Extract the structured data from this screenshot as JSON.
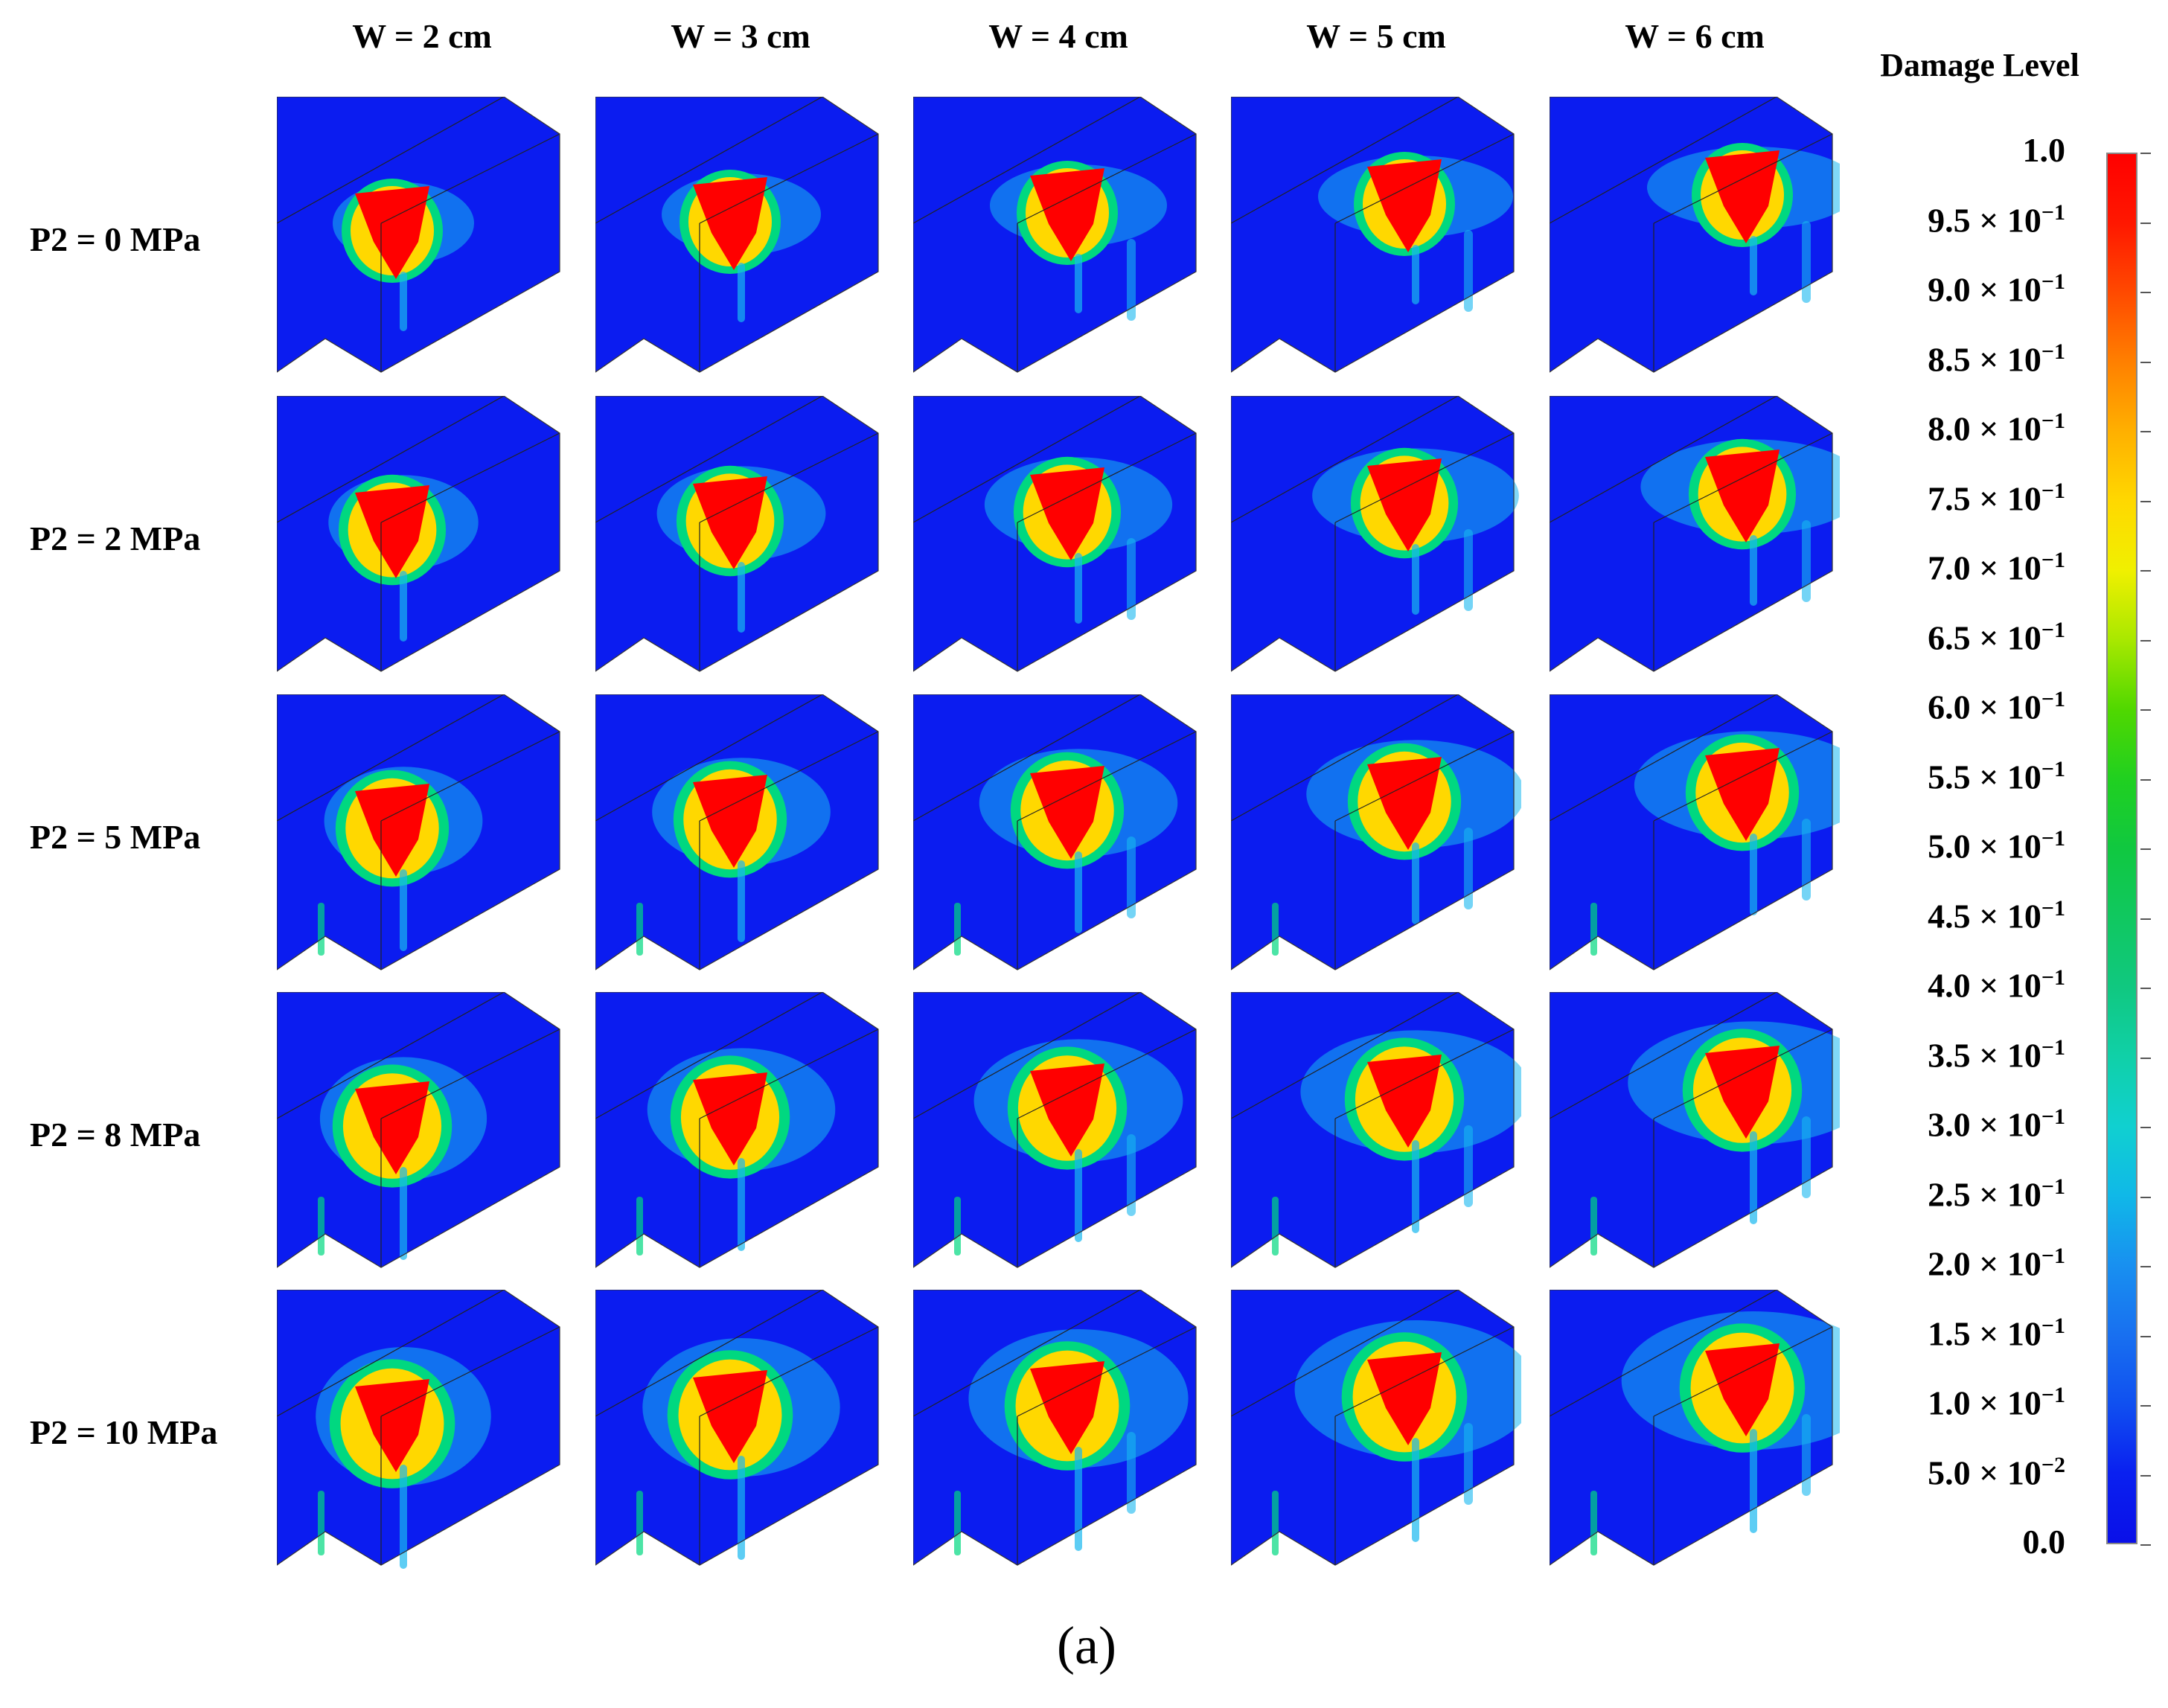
{
  "columns": [
    "W = 2 cm",
    "W = 3 cm",
    "W = 4 cm",
    "W = 5 cm",
    "W = 6 cm"
  ],
  "rows": [
    "P2 = 0 MPa",
    "P2 = 2 MPa",
    "P2 = 5 MPa",
    "P2 = 8 MPa",
    "P2 = 10 MPa"
  ],
  "colorbar": {
    "title": "Damage Level",
    "labels": [
      {
        "mantissa": "1.0",
        "exp": ""
      },
      {
        "mantissa": "9.5 × 10",
        "exp": "−1"
      },
      {
        "mantissa": "9.0 × 10",
        "exp": "−1"
      },
      {
        "mantissa": "8.5 × 10",
        "exp": "−1"
      },
      {
        "mantissa": "8.0 × 10",
        "exp": "−1"
      },
      {
        "mantissa": "7.5 × 10",
        "exp": "−1"
      },
      {
        "mantissa": "7.0 × 10",
        "exp": "−1"
      },
      {
        "mantissa": "6.5 × 10",
        "exp": "−1"
      },
      {
        "mantissa": "6.0 × 10",
        "exp": "−1"
      },
      {
        "mantissa": "5.5 × 10",
        "exp": "−1"
      },
      {
        "mantissa": "5.0 × 10",
        "exp": "−1"
      },
      {
        "mantissa": "4.5 × 10",
        "exp": "−1"
      },
      {
        "mantissa": "4.0 × 10",
        "exp": "−1"
      },
      {
        "mantissa": "3.5 × 10",
        "exp": "−1"
      },
      {
        "mantissa": "3.0 × 10",
        "exp": "−1"
      },
      {
        "mantissa": "2.5 × 10",
        "exp": "−1"
      },
      {
        "mantissa": "2.0 × 10",
        "exp": "−1"
      },
      {
        "mantissa": "1.5 × 10",
        "exp": "−1"
      },
      {
        "mantissa": "1.0 × 10",
        "exp": "−1"
      },
      {
        "mantissa": "5.0 × 10",
        "exp": "−2"
      },
      {
        "mantissa": "0.0",
        "exp": ""
      }
    ],
    "colors": [
      "#ff0000",
      "#ff1800",
      "#ff4a00",
      "#ff8000",
      "#ffb000",
      "#ffd800",
      "#f0f000",
      "#a8e800",
      "#50d800",
      "#20d020",
      "#10c840",
      "#10c860",
      "#10c880",
      "#10d0a8",
      "#10d0d0",
      "#10b8e8",
      "#1890f0",
      "#1870f0",
      "#1050f0",
      "#0a20f0",
      "#0a10e8"
    ]
  },
  "caption": "(a)",
  "colors": {
    "background": "#0b1cf0",
    "damage_core": "#ff0000",
    "damage_mid": "#ffd800",
    "damage_outer": "#00d880",
    "halo": "#18b8f0"
  }
}
